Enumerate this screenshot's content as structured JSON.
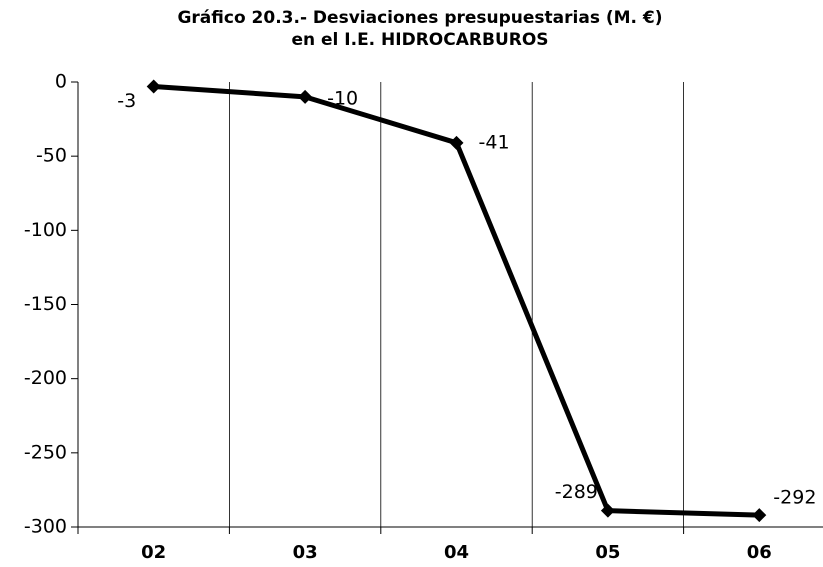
{
  "chart_data": {
    "type": "line",
    "title": [
      "Gráfico 20.3.- Desviaciones presupuestarias (M. €)",
      "en el I.E. HIDROCARBUROS"
    ],
    "categories": [
      "02",
      "03",
      "04",
      "05",
      "06"
    ],
    "values": [
      -3,
      -10,
      -41,
      -289,
      -292
    ],
    "color": "#000000",
    "ylim": [
      -300,
      0
    ],
    "yticks": [
      0,
      -50,
      -100,
      -150,
      -200,
      -250,
      -300
    ],
    "grid": false
  }
}
